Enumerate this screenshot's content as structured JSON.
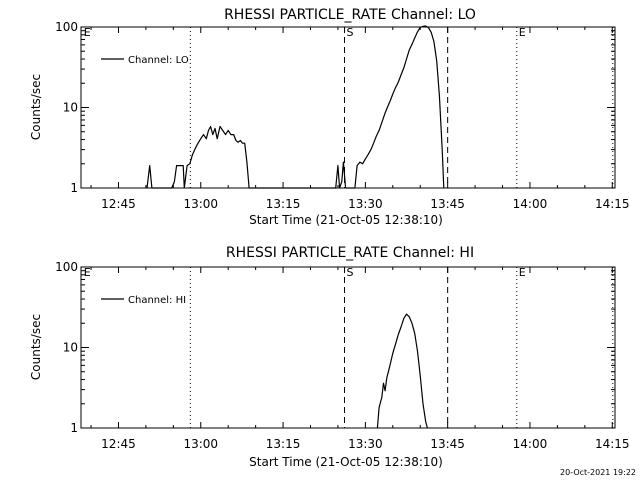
{
  "footer": {
    "timestamp": "20-Oct-2021 19:22"
  },
  "chart_data": [
    {
      "type": "line",
      "title": "RHESSI PARTICLE_RATE Channel: LO",
      "xlabel": "Start Time (21-Oct-05 12:38:10)",
      "ylabel": "Counts/sec",
      "x_unit": "minutes after 12:00",
      "xlim": [
        38.17,
        135.5
      ],
      "ylim": [
        1,
        100
      ],
      "y_scale": "log",
      "x_ticks": [
        {
          "value": 45,
          "label": "12:45"
        },
        {
          "value": 60,
          "label": "13:00"
        },
        {
          "value": 75,
          "label": "13:15"
        },
        {
          "value": 90,
          "label": "13:30"
        },
        {
          "value": 105,
          "label": "13:45"
        },
        {
          "value": 120,
          "label": "14:00"
        },
        {
          "value": 135,
          "label": "14:15"
        }
      ],
      "y_ticks": [
        {
          "value": 1,
          "label": "1"
        },
        {
          "value": 10,
          "label": "10"
        },
        {
          "value": 100,
          "label": "100"
        }
      ],
      "legend": {
        "label": "Channel: LO",
        "position": "top-left"
      },
      "markers": [
        {
          "x": 38.3,
          "style": "none",
          "label": "E"
        },
        {
          "x": 58.1,
          "style": "dotted",
          "label": ""
        },
        {
          "x": 86.2,
          "style": "dashed",
          "label": "S"
        },
        {
          "x": 105.0,
          "style": "dashed",
          "label": ""
        },
        {
          "x": 117.6,
          "style": "dotted",
          "label": "E"
        },
        {
          "x": 135.1,
          "style": "dotted",
          "label": ""
        }
      ],
      "series": [
        {
          "name": "Channel: LO",
          "x": [
            50.2,
            50.7,
            51.1,
            54.7,
            55.2,
            55.6,
            56.2,
            56.8,
            57.0,
            57.5,
            58.0,
            58.5,
            59.0,
            59.5,
            60.0,
            60.5,
            61.0,
            61.4,
            61.8,
            62.2,
            62.6,
            63.0,
            63.5,
            64.0,
            64.5,
            65.0,
            65.5,
            66.0,
            66.4,
            66.8,
            67.2,
            67.6,
            68.0,
            68.4,
            68.8,
            69.2,
            69.6,
            70.0,
            84.6,
            85.0,
            85.3,
            85.7,
            86.0,
            86.4,
            86.8,
            87.3,
            87.7,
            88.1,
            88.5,
            89.0,
            89.5,
            90.0,
            90.5,
            91.0,
            91.5,
            92.0,
            92.5,
            93.0,
            93.5,
            94.0,
            94.5,
            95.0,
            95.5,
            96.0,
            96.5,
            97.0,
            97.5,
            98.0,
            98.5,
            99.0,
            99.5,
            100.0,
            100.5,
            101.0,
            101.5,
            102.0,
            102.5,
            103.0,
            103.5,
            104.0,
            104.3
          ],
          "y": [
            1.0,
            1.9,
            1.0,
            1.0,
            1.2,
            1.9,
            1.9,
            1.9,
            1.0,
            1.9,
            2.0,
            2.6,
            3.1,
            3.6,
            4.1,
            4.6,
            4.1,
            5.2,
            5.8,
            4.6,
            5.5,
            4.1,
            5.8,
            5.2,
            4.6,
            5.2,
            4.6,
            4.6,
            3.9,
            3.7,
            3.9,
            3.6,
            3.6,
            2.1,
            1.0,
            1.0,
            1.0,
            1.0,
            1.0,
            1.9,
            1.0,
            1.2,
            2.1,
            1.0,
            1.0,
            1.0,
            1.0,
            1.0,
            1.9,
            2.1,
            2.0,
            2.3,
            2.6,
            3.0,
            3.6,
            4.4,
            5.2,
            6.5,
            8.2,
            10.0,
            12.0,
            14.7,
            17.6,
            20.7,
            25.3,
            31.0,
            40.0,
            52.0,
            61.0,
            73.0,
            87.0,
            99.0,
            102.0,
            103.0,
            98.0,
            86.0,
            66.0,
            38.0,
            14.0,
            3.0,
            1.0
          ]
        }
      ]
    },
    {
      "type": "line",
      "title": "RHESSI PARTICLE_RATE Channel: HI",
      "xlabel": "Start Time (21-Oct-05 12:38:10)",
      "ylabel": "Counts/sec",
      "x_unit": "minutes after 12:00",
      "xlim": [
        38.17,
        135.5
      ],
      "ylim": [
        1,
        100
      ],
      "y_scale": "log",
      "x_ticks": [
        {
          "value": 45,
          "label": "12:45"
        },
        {
          "value": 60,
          "label": "13:00"
        },
        {
          "value": 75,
          "label": "13:15"
        },
        {
          "value": 90,
          "label": "13:30"
        },
        {
          "value": 105,
          "label": "13:45"
        },
        {
          "value": 120,
          "label": "14:00"
        },
        {
          "value": 135,
          "label": "14:15"
        }
      ],
      "y_ticks": [
        {
          "value": 1,
          "label": "1"
        },
        {
          "value": 10,
          "label": "10"
        },
        {
          "value": 100,
          "label": "100"
        }
      ],
      "legend": {
        "label": "Channel: HI",
        "position": "top-left"
      },
      "markers": [
        {
          "x": 38.3,
          "style": "none",
          "label": "E"
        },
        {
          "x": 58.1,
          "style": "dotted",
          "label": ""
        },
        {
          "x": 86.2,
          "style": "dashed",
          "label": "S"
        },
        {
          "x": 105.0,
          "style": "dashed",
          "label": ""
        },
        {
          "x": 117.6,
          "style": "dotted",
          "label": "E"
        },
        {
          "x": 135.1,
          "style": "dotted",
          "label": ""
        }
      ],
      "series": [
        {
          "name": "Channel: HI",
          "x": [
            92.2,
            92.5,
            93.0,
            93.3,
            93.6,
            93.9,
            94.2,
            94.6,
            95.0,
            95.5,
            96.0,
            96.5,
            97.0,
            97.5,
            98.0,
            98.5,
            99.0,
            99.5,
            100.0,
            100.5,
            101.0,
            101.3
          ],
          "y": [
            1.0,
            1.8,
            2.4,
            3.6,
            2.9,
            4.2,
            5.0,
            6.5,
            8.5,
            11.0,
            14.5,
            18.0,
            23.0,
            26.0,
            24.0,
            20.0,
            15.0,
            9.0,
            4.5,
            2.0,
            1.2,
            1.0
          ]
        }
      ]
    }
  ]
}
